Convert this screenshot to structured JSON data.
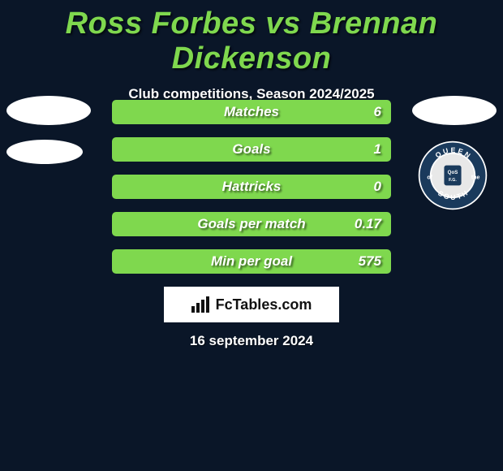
{
  "title": "Ross Forbes vs Brennan Dickenson",
  "subtitle": "Club competitions, Season 2024/2025",
  "bars": [
    {
      "label": "Matches",
      "value": "6",
      "color": "#7fd84e"
    },
    {
      "label": "Goals",
      "value": "1",
      "color": "#7fd84e"
    },
    {
      "label": "Hattricks",
      "value": "0",
      "color": "#7fd84e"
    },
    {
      "label": "Goals per match",
      "value": "0.17",
      "color": "#7fd84e"
    },
    {
      "label": "Min per goal",
      "value": "575",
      "color": "#7fd84e"
    }
  ],
  "fctables_label": "FcTables.com",
  "date": "16 september 2024",
  "colors": {
    "background": "#0a1628",
    "title": "#7fd84e",
    "text": "#ffffff",
    "bar_fill": "#7fd84e",
    "box_bg": "#ffffff"
  },
  "badge": {
    "outer_text_top": "QUEEN",
    "outer_text_bottom": "SOUTH",
    "ring_color": "#ffffff",
    "ring_bg": "#1a3a5c",
    "inner_bg": "#e8e8e8"
  }
}
